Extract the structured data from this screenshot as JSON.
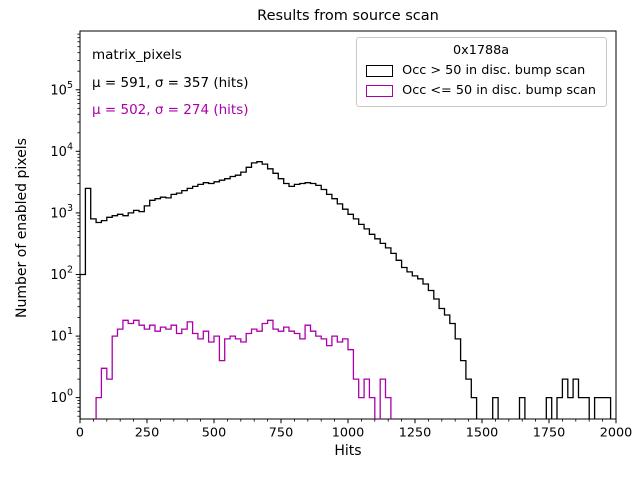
{
  "annotations": {
    "matrix_label": "matrix_pixels",
    "stats_black": "μ = 591, σ = 357 (hits)",
    "stats_purple": "μ = 502, σ = 274 (hits)"
  },
  "legend": {
    "title": "0x1788a"
  },
  "chart_data": {
    "type": "line",
    "subtype": "step-histogram",
    "yscale": "log",
    "title": "Results from source scan",
    "xlabel": "Hits",
    "ylabel": "Number of enabled pixels",
    "xlim": [
      0,
      2000
    ],
    "ylim": [
      0.45,
      900000
    ],
    "bin_width": 20,
    "x_ticks": [
      0,
      250,
      500,
      750,
      1000,
      1250,
      1500,
      1750,
      2000
    ],
    "x_minor_step": 50,
    "y_tick_exponents": [
      0,
      1,
      2,
      3,
      4,
      5
    ],
    "legend_position": "upper right",
    "legend_title": "0x1788a",
    "series": [
      {
        "name": "Occ > 50 in disc. bump scan",
        "color": "#000000",
        "values": [
          100,
          2500,
          800,
          700,
          750,
          850,
          900,
          950,
          900,
          1000,
          1100,
          1050,
          1300,
          1600,
          1700,
          1800,
          1750,
          2000,
          2100,
          2300,
          2500,
          2700,
          2900,
          3100,
          3000,
          3200,
          3400,
          3600,
          3900,
          4100,
          4600,
          5500,
          6500,
          6800,
          6200,
          5200,
          4400,
          3600,
          3000,
          2700,
          2900,
          3000,
          3100,
          3000,
          2800,
          2400,
          2000,
          1700,
          1400,
          1150,
          950,
          800,
          650,
          550,
          450,
          380,
          320,
          270,
          220,
          170,
          130,
          110,
          95,
          85,
          70,
          55,
          40,
          28,
          22,
          16,
          9,
          4,
          2,
          1,
          0,
          0,
          0,
          1,
          0,
          0,
          0,
          0,
          1,
          0,
          0,
          0,
          0,
          1,
          0,
          1,
          2,
          1,
          2,
          1,
          1,
          0,
          1,
          1,
          1,
          0
        ]
      },
      {
        "name": "Occ <= 50 in disc. bump scan",
        "color": "#aa00aa",
        "values": [
          0,
          0,
          0,
          1,
          3,
          2,
          10,
          13,
          18,
          16,
          18,
          15,
          13,
          15,
          12,
          14,
          13,
          15,
          11,
          13,
          17,
          11,
          9,
          12,
          8,
          10,
          4,
          9,
          10,
          9,
          8,
          11,
          13,
          12,
          16,
          18,
          13,
          12,
          14,
          12,
          11,
          9,
          15,
          12,
          10,
          9,
          7,
          10,
          8,
          9,
          6,
          2,
          1,
          2,
          1,
          0,
          2,
          1,
          0,
          0,
          0,
          0,
          0,
          0,
          0,
          0,
          0,
          0,
          0,
          0,
          0,
          0,
          0,
          0,
          0,
          0,
          0,
          0,
          0,
          0,
          0,
          0,
          0,
          0,
          0,
          0,
          0,
          0,
          0,
          0,
          0,
          0,
          0,
          0,
          0,
          0,
          0,
          0,
          0,
          0
        ]
      }
    ]
  }
}
